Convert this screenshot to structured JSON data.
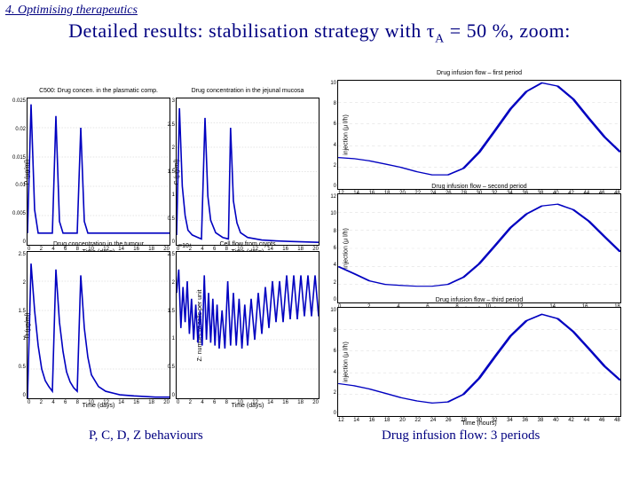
{
  "section_header": "4. Optimising therapeutics",
  "title_prefix": "Detailed results: stabilisation strategy with τ",
  "title_sub": "A",
  "title_suffix": " = 50 %, zoom:",
  "colors": {
    "text_navy": "#000080",
    "line_blue": "#0000c0",
    "border": "#000000",
    "grid": "#cccccc"
  },
  "left_charts": [
    {
      "id": "chart-p",
      "title": "C500: Drug concen. in the plasmatic comp.",
      "ylabel": "P (μg/ml)",
      "xlabel": "Time (days)",
      "xticks": [
        "0",
        "2",
        "4",
        "6",
        "8",
        "10",
        "12",
        "14",
        "16",
        "18",
        "20"
      ],
      "yticks": [
        "0",
        "0.005",
        "0.01",
        "0.015",
        "0.02",
        "0.025"
      ],
      "series": [
        [
          0,
          0.002
        ],
        [
          0.5,
          0.024
        ],
        [
          1,
          0.006
        ],
        [
          1.5,
          0.002
        ],
        [
          2.0,
          0.002
        ],
        [
          2.5,
          0.002
        ],
        [
          3,
          0.002
        ],
        [
          3.5,
          0.002
        ],
        [
          4,
          0.022
        ],
        [
          4.5,
          0.004
        ],
        [
          5,
          0.002
        ],
        [
          5.5,
          0.002
        ],
        [
          6,
          0.002
        ],
        [
          6.5,
          0.002
        ],
        [
          7,
          0.002
        ],
        [
          7.5,
          0.02
        ],
        [
          8,
          0.004
        ],
        [
          8.5,
          0.002
        ],
        [
          9,
          0.002
        ],
        [
          10,
          0.002
        ],
        [
          11,
          0.002
        ],
        [
          12,
          0.002
        ],
        [
          14,
          0.002
        ],
        [
          16,
          0.002
        ],
        [
          18,
          0.002
        ],
        [
          20,
          0.002
        ]
      ],
      "ylim": [
        0,
        0.025
      ],
      "xlim": [
        0,
        20
      ]
    },
    {
      "id": "chart-c",
      "title": "Drug concentration in the jejunal mucosa",
      "ylabel": "C (μg/ml)",
      "xlabel": "Time (days)",
      "xticks": [
        "0",
        "2",
        "4",
        "6",
        "8",
        "10",
        "12",
        "14",
        "16",
        "18",
        "20"
      ],
      "yticks": [
        "0",
        "0.5",
        "1",
        "1.5",
        "2",
        "2.5",
        "3"
      ],
      "series": [
        [
          0,
          0.2
        ],
        [
          0.4,
          2.8
        ],
        [
          0.8,
          1.2
        ],
        [
          1.2,
          0.6
        ],
        [
          1.6,
          0.3
        ],
        [
          2.2,
          0.2
        ],
        [
          3,
          0.15
        ],
        [
          3.5,
          0.12
        ],
        [
          4,
          2.6
        ],
        [
          4.4,
          1.0
        ],
        [
          4.8,
          0.5
        ],
        [
          5.5,
          0.25
        ],
        [
          6.5,
          0.15
        ],
        [
          7.3,
          0.12
        ],
        [
          7.6,
          2.4
        ],
        [
          8,
          0.9
        ],
        [
          8.5,
          0.45
        ],
        [
          9,
          0.25
        ],
        [
          10,
          0.15
        ],
        [
          12,
          0.1
        ],
        [
          14,
          0.08
        ],
        [
          16,
          0.07
        ],
        [
          18,
          0.06
        ],
        [
          20,
          0.05
        ]
      ],
      "ylim": [
        0,
        3
      ],
      "xlim": [
        0,
        20
      ]
    },
    {
      "id": "chart-d",
      "title": "Drug concentration in the tumour",
      "ylabel": "D (μg/ml)",
      "xlabel": "Time (days)",
      "xticks": [
        "0",
        "2",
        "4",
        "6",
        "8",
        "10",
        "12",
        "14",
        "16",
        "18",
        "20"
      ],
      "yticks": [
        "0",
        "0.5",
        "1",
        "1.5",
        "2",
        "2.5"
      ],
      "series": [
        [
          0,
          0
        ],
        [
          0.5,
          2.3
        ],
        [
          1,
          1.5
        ],
        [
          1.5,
          0.9
        ],
        [
          2,
          0.5
        ],
        [
          2.5,
          0.3
        ],
        [
          3,
          0.2
        ],
        [
          3.5,
          0.12
        ],
        [
          4,
          2.2
        ],
        [
          4.5,
          1.3
        ],
        [
          5,
          0.8
        ],
        [
          5.5,
          0.45
        ],
        [
          6,
          0.28
        ],
        [
          6.5,
          0.18
        ],
        [
          7,
          0.12
        ],
        [
          7.5,
          2.1
        ],
        [
          8,
          1.2
        ],
        [
          8.5,
          0.7
        ],
        [
          9,
          0.4
        ],
        [
          10,
          0.2
        ],
        [
          11,
          0.12
        ],
        [
          13,
          0.06
        ],
        [
          15,
          0.04
        ],
        [
          18,
          0.02
        ],
        [
          20,
          0.02
        ]
      ],
      "ylim": [
        0,
        2.5
      ],
      "xlim": [
        0,
        20
      ]
    },
    {
      "id": "chart-z",
      "title": "Cell flow from crypts",
      "ylabel": "Z: number of cells per unit",
      "xlabel": "Time (days)",
      "xticks": [
        "0",
        "2",
        "4",
        "6",
        "8",
        "10",
        "12",
        "14",
        "16",
        "18",
        "20"
      ],
      "yticks": [
        "0",
        "0.5",
        "1",
        "1.5",
        "2",
        "2.5"
      ],
      "exponent": "×10⁴",
      "series": [
        [
          0,
          1.8
        ],
        [
          0.3,
          2.2
        ],
        [
          0.6,
          1.2
        ],
        [
          0.9,
          1.9
        ],
        [
          1.2,
          1.3
        ],
        [
          1.5,
          2.0
        ],
        [
          1.8,
          1.1
        ],
        [
          2.1,
          1.7
        ],
        [
          2.4,
          1.0
        ],
        [
          2.7,
          1.6
        ],
        [
          3,
          0.95
        ],
        [
          3.3,
          1.5
        ],
        [
          3.6,
          0.9
        ],
        [
          3.9,
          2.1
        ],
        [
          4.2,
          1.0
        ],
        [
          4.5,
          1.8
        ],
        [
          4.8,
          0.95
        ],
        [
          5.1,
          1.7
        ],
        [
          5.4,
          0.9
        ],
        [
          5.7,
          1.6
        ],
        [
          6,
          0.85
        ],
        [
          6.4,
          1.5
        ],
        [
          6.8,
          0.85
        ],
        [
          7.2,
          2.0
        ],
        [
          7.6,
          0.9
        ],
        [
          8,
          1.8
        ],
        [
          8.4,
          0.9
        ],
        [
          8.8,
          1.7
        ],
        [
          9.2,
          0.85
        ],
        [
          9.6,
          1.6
        ],
        [
          10,
          0.9
        ],
        [
          10.5,
          1.7
        ],
        [
          11,
          1.0
        ],
        [
          11.5,
          1.8
        ],
        [
          12,
          1.1
        ],
        [
          12.5,
          1.9
        ],
        [
          13,
          1.2
        ],
        [
          13.5,
          2.0
        ],
        [
          14,
          1.3
        ],
        [
          14.5,
          2.0
        ],
        [
          15,
          1.3
        ],
        [
          15.5,
          2.1
        ],
        [
          16,
          1.35
        ],
        [
          16.5,
          2.1
        ],
        [
          17,
          1.35
        ],
        [
          17.5,
          2.1
        ],
        [
          18,
          1.4
        ],
        [
          18.5,
          2.1
        ],
        [
          19,
          1.4
        ],
        [
          19.5,
          2.1
        ],
        [
          20,
          1.4
        ]
      ],
      "ylim": [
        0,
        2.5
      ],
      "xlim": [
        0,
        20
      ]
    }
  ],
  "right_charts": [
    {
      "id": "flow-1",
      "title": "Drug infusion flow – first period",
      "ylabel": "injection (μ l/h)",
      "xlabel": "Time (hours)",
      "xticks": [
        "12",
        "14",
        "16",
        "18",
        "20",
        "22",
        "24",
        "26",
        "28",
        "30",
        "32",
        "34",
        "36",
        "38",
        "40",
        "42",
        "44",
        "46",
        "48"
      ],
      "yticks": [
        "0",
        "2",
        "4",
        "6",
        "8",
        "10"
      ],
      "series": [
        [
          12,
          2.9
        ],
        [
          14,
          2.8
        ],
        [
          16,
          2.6
        ],
        [
          18,
          2.3
        ],
        [
          20,
          2.0
        ],
        [
          22,
          1.6
        ],
        [
          24,
          1.3
        ],
        [
          26,
          1.3
        ],
        [
          28,
          1.9
        ],
        [
          30,
          3.4
        ],
        [
          32,
          5.4
        ],
        [
          34,
          7.4
        ],
        [
          36,
          9.0
        ],
        [
          38,
          9.8
        ],
        [
          40,
          9.5
        ],
        [
          42,
          8.3
        ],
        [
          44,
          6.5
        ],
        [
          46,
          4.8
        ],
        [
          48,
          3.4
        ]
      ],
      "ylim": [
        0,
        10
      ],
      "xlim": [
        12,
        48
      ]
    },
    {
      "id": "flow-2",
      "title": "Drug infusion flow – second period",
      "ylabel": "injection (μ l/h)",
      "xlabel": "Time (hours)",
      "xticks": [
        "0",
        "2",
        "4",
        "6",
        "8",
        "10",
        "12",
        "14",
        "16",
        "18"
      ],
      "yticks": [
        "0",
        "2",
        "4",
        "6",
        "8",
        "10",
        "12"
      ],
      "series": [
        [
          0,
          4.0
        ],
        [
          1,
          3.2
        ],
        [
          2,
          2.4
        ],
        [
          3,
          2.0
        ],
        [
          4,
          1.9
        ],
        [
          5,
          1.8
        ],
        [
          6,
          1.8
        ],
        [
          7,
          2.0
        ],
        [
          8,
          2.8
        ],
        [
          9,
          4.3
        ],
        [
          10,
          6.3
        ],
        [
          11,
          8.3
        ],
        [
          12,
          9.8
        ],
        [
          13,
          10.7
        ],
        [
          14,
          10.9
        ],
        [
          15,
          10.3
        ],
        [
          16,
          9.0
        ],
        [
          17,
          7.3
        ],
        [
          18,
          5.6
        ]
      ],
      "ylim": [
        0,
        12
      ],
      "xlim": [
        0,
        18
      ]
    },
    {
      "id": "flow-3",
      "title": "Drug infusion flow – third period",
      "ylabel": "injection (μ l/h)",
      "xlabel": "Time (hours)",
      "xticks": [
        "12",
        "14",
        "16",
        "18",
        "20",
        "22",
        "24",
        "26",
        "28",
        "30",
        "32",
        "34",
        "36",
        "38",
        "40",
        "42",
        "44",
        "46",
        "48"
      ],
      "yticks": [
        "0",
        "2",
        "4",
        "6",
        "8",
        "10"
      ],
      "series": [
        [
          12,
          3.0
        ],
        [
          14,
          2.8
        ],
        [
          16,
          2.5
        ],
        [
          18,
          2.1
        ],
        [
          20,
          1.7
        ],
        [
          22,
          1.4
        ],
        [
          24,
          1.2
        ],
        [
          26,
          1.3
        ],
        [
          28,
          2.0
        ],
        [
          30,
          3.5
        ],
        [
          32,
          5.5
        ],
        [
          34,
          7.4
        ],
        [
          36,
          8.8
        ],
        [
          38,
          9.4
        ],
        [
          40,
          9.0
        ],
        [
          42,
          7.8
        ],
        [
          44,
          6.2
        ],
        [
          46,
          4.6
        ],
        [
          48,
          3.3
        ]
      ],
      "ylim": [
        0,
        10
      ],
      "xlim": [
        12,
        48
      ]
    }
  ],
  "caption_left": "P, C, D, Z behaviours",
  "caption_right": "Drug infusion flow: 3 periods"
}
